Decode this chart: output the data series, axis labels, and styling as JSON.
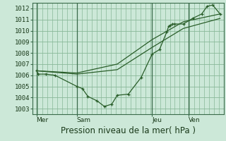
{
  "title": "Pression niveau de la mer( hPa )",
  "background_color": "#cce8d8",
  "grid_color": "#88b898",
  "line_color": "#2a5e2a",
  "ylim": [
    1002.5,
    1012.5
  ],
  "yticks": [
    1003,
    1004,
    1005,
    1006,
    1007,
    1008,
    1009,
    1010,
    1011,
    1012
  ],
  "xtick_labels": [
    "Mer",
    "Sam",
    "Jeu",
    "Ven"
  ],
  "xtick_positions": [
    0.0,
    0.22,
    0.63,
    0.83
  ],
  "vline_positions": [
    0.0,
    0.22,
    0.63,
    0.83
  ],
  "line1_x": [
    0.0,
    0.01,
    0.05,
    0.1,
    0.22,
    0.25,
    0.28,
    0.33,
    0.37,
    0.41,
    0.44,
    0.5,
    0.57,
    0.63,
    0.67,
    0.71,
    0.72,
    0.73,
    0.74,
    0.75,
    0.8,
    0.85,
    0.9,
    0.93,
    0.96,
    1.0
  ],
  "line1_y": [
    1006.4,
    1006.1,
    1006.1,
    1006.0,
    1005.0,
    1004.8,
    1004.1,
    1003.7,
    1003.2,
    1003.4,
    1004.2,
    1004.3,
    1005.8,
    1007.9,
    1008.3,
    1009.9,
    1010.4,
    1010.5,
    1010.6,
    1010.6,
    1010.6,
    1011.1,
    1011.5,
    1012.2,
    1012.3,
    1011.5
  ],
  "line2_x": [
    0.0,
    0.22,
    0.44,
    0.63,
    0.8,
    1.0
  ],
  "line2_y": [
    1006.4,
    1006.1,
    1006.5,
    1008.5,
    1010.2,
    1011.1
  ],
  "line3_x": [
    0.0,
    0.22,
    0.44,
    0.63,
    0.8,
    1.0
  ],
  "line3_y": [
    1006.4,
    1006.2,
    1007.0,
    1009.2,
    1010.8,
    1011.5
  ],
  "title_fontsize": 8.5,
  "tick_fontsize": 6.5
}
